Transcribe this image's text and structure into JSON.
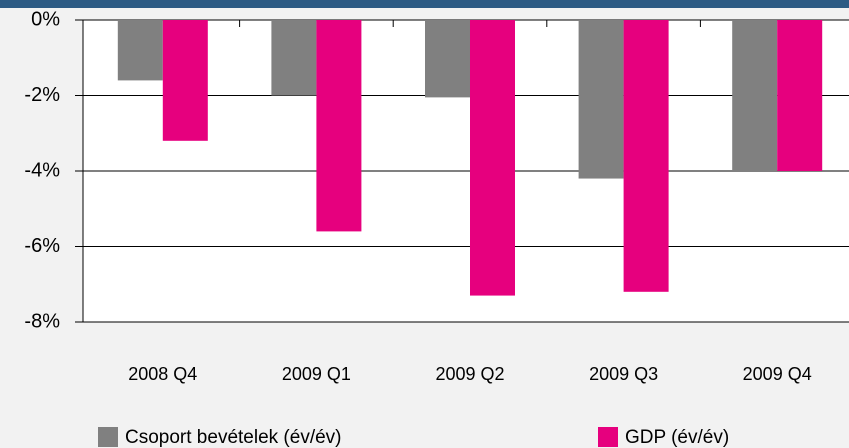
{
  "chart_data": {
    "type": "bar",
    "categories": [
      "2008 Q4",
      "2009 Q1",
      "2009 Q2",
      "2009 Q3",
      "2009 Q4"
    ],
    "series": [
      {
        "name": "Csoport bevételek (év/év)",
        "color": "#808080",
        "values": [
          -1.6,
          -2.0,
          -2.05,
          -4.2,
          -4.0
        ]
      },
      {
        "name": "GDP (év/év)",
        "color": "#e6007e",
        "values": [
          -3.2,
          -5.6,
          -7.3,
          -7.2,
          -4.0
        ]
      }
    ],
    "ylim": [
      -8,
      0
    ],
    "yticks": [
      {
        "value": 0,
        "label": "0%"
      },
      {
        "value": -2,
        "label": "-2%"
      },
      {
        "value": -4,
        "label": "-4%"
      },
      {
        "value": -6,
        "label": "-6%"
      },
      {
        "value": -8,
        "label": "-8%"
      }
    ],
    "grid": true
  }
}
